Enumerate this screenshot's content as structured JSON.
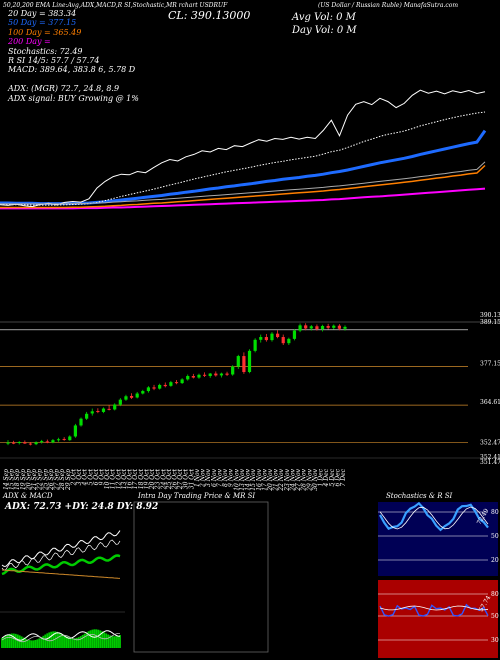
{
  "header": {
    "top_line": "50,20,200 EMA Line:Avg,ADX,MACD,R                    SI,Stochastic,MR                 rchart  USDRUF",
    "close_label": "CL: 390.13000",
    "right_title": "(US Dollar / Russian Ruble) ManafaSutra.com",
    "avg_vol": "Avg Vol: 0  M",
    "day_vol": "Day Vol: 0   M",
    "rows": [
      {
        "text": "20  Day = 383.34",
        "color": "#ffffff"
      },
      {
        "text": "50  Day = 377.15",
        "color": "#1e6bff"
      },
      {
        "text": "100  Day = 365.49",
        "color": "#ff7f00"
      },
      {
        "text": "200  Day = ",
        "color": "#ff00ff"
      },
      {
        "text": "Stochastics: 72.49",
        "color": "#ffffff"
      },
      {
        "text": "R                       SI 14/5: 57.7 / 57.74",
        "color": "#ffffff"
      },
      {
        "text": "MACD: 389.64,  383.8                6,  5.78  D",
        "color": "#ffffff"
      },
      {
        "text": "",
        "color": "#ffffff"
      },
      {
        "text": "ADX:                                        (MGR) 72.7,  24.8,   8.9",
        "color": "#ffffff"
      },
      {
        "text": "ADX  signal:                                       BUY Growing @ 1%",
        "color": "#ffffff"
      }
    ]
  },
  "price_axis": [
    "390.13",
    "389.15",
    "377.15",
    "364.61",
    "352.47",
    "352.41",
    "351.4738"
  ],
  "x_labels": [
    "14 Sep",
    "15 Sep",
    "18 Sep",
    "19 Sep",
    "20 Sep",
    "21 Sep",
    "22 Sep",
    "25 Sep",
    "26 Sep",
    "27 Sep",
    "28 Sep",
    "29 Sep",
    "2 Oct",
    "3 Oct",
    "4 Oct",
    "5 Oct",
    "6 Oct",
    "9 Oct",
    "10 Oct",
    "11 Oct",
    "12 Oct",
    "13 Oct",
    "16 Oct",
    "17 Oct",
    "18 Oct",
    "19 Oct",
    "20 Oct",
    "23 Oct",
    "24 Oct",
    "25 Oct",
    "26 Oct",
    "27 Oct",
    "30 Oct",
    "31 Oct",
    "1 Nov",
    "2 Nov",
    "3 Nov",
    "6 Nov",
    "7 Nov",
    "8 Nov",
    "9 Nov",
    "10 Nov",
    "13 Nov",
    "14 Nov",
    "15 Nov",
    "16 Nov",
    "17 Nov",
    "20 Nov",
    "21 Nov",
    "22 Nov",
    "23 Nov",
    "24 Nov",
    "27 Nov",
    "28 Nov",
    "29 Nov",
    "30 Nov",
    "1 Dec",
    "4 Dec",
    "5 Dec",
    "6 Dec",
    "7 Dec"
  ],
  "panels": {
    "adx_title": "ADX  & MACD",
    "adx_values": "ADX: 72.73  +DY: 24.8   DY: 8.92",
    "intraday_title": "Intra  Day Trading Price  & MR                     SI",
    "stoch_title": "Stochastics & R                SI",
    "stoch_levels": [
      "80",
      "50",
      "20"
    ],
    "rsi_levels": [
      "80",
      "50",
      "30"
    ],
    "stoch_value": "72.49",
    "rsi_value": "57.74"
  },
  "colors": {
    "up": "#00dd00",
    "down": "#ff3030",
    "ema20": "#ffffff",
    "ema50": "#1e6bff",
    "ema100": "#ff7f00",
    "ema200": "#ff00ff",
    "stoch_bg": "#000055",
    "rsi_bg": "#aa0000"
  },
  "chart_data": {
    "type": "line",
    "title": "USDRUF",
    "candles": [
      {
        "o": 352.1,
        "h": 353.2,
        "l": 351.6,
        "c": 352.4
      },
      {
        "o": 352.4,
        "h": 353.0,
        "l": 351.9,
        "c": 352.2
      },
      {
        "o": 352.3,
        "h": 352.9,
        "l": 351.8,
        "c": 352.6
      },
      {
        "o": 352.5,
        "h": 353.1,
        "l": 352.0,
        "c": 352.1
      },
      {
        "o": 352.1,
        "h": 352.6,
        "l": 351.5,
        "c": 351.8
      },
      {
        "o": 351.9,
        "h": 352.8,
        "l": 351.6,
        "c": 352.5
      },
      {
        "o": 352.6,
        "h": 353.3,
        "l": 352.1,
        "c": 352.9
      },
      {
        "o": 352.8,
        "h": 353.4,
        "l": 352.2,
        "c": 352.4
      },
      {
        "o": 352.5,
        "h": 353.6,
        "l": 352.2,
        "c": 353.2
      },
      {
        "o": 353.2,
        "h": 354.0,
        "l": 352.7,
        "c": 353.5
      },
      {
        "o": 353.6,
        "h": 354.2,
        "l": 353.0,
        "c": 353.3
      },
      {
        "o": 353.2,
        "h": 354.8,
        "l": 353.0,
        "c": 354.4
      },
      {
        "o": 354.4,
        "h": 358.5,
        "l": 354.0,
        "c": 358.0
      },
      {
        "o": 358.0,
        "h": 360.6,
        "l": 357.6,
        "c": 360.2
      },
      {
        "o": 360.2,
        "h": 362.4,
        "l": 359.8,
        "c": 361.8
      },
      {
        "o": 361.9,
        "h": 363.5,
        "l": 361.2,
        "c": 362.6
      },
      {
        "o": 362.7,
        "h": 363.6,
        "l": 362.0,
        "c": 362.4
      },
      {
        "o": 362.4,
        "h": 363.9,
        "l": 362.0,
        "c": 363.5
      },
      {
        "o": 363.4,
        "h": 364.5,
        "l": 362.9,
        "c": 363.1
      },
      {
        "o": 363.2,
        "h": 365.2,
        "l": 362.9,
        "c": 364.8
      },
      {
        "o": 364.8,
        "h": 366.9,
        "l": 364.3,
        "c": 366.4
      },
      {
        "o": 366.4,
        "h": 368.0,
        "l": 366.0,
        "c": 367.5
      },
      {
        "o": 367.6,
        "h": 368.5,
        "l": 366.6,
        "c": 367.0
      },
      {
        "o": 367.1,
        "h": 368.9,
        "l": 366.8,
        "c": 368.4
      },
      {
        "o": 368.4,
        "h": 369.6,
        "l": 368.1,
        "c": 369.2
      },
      {
        "o": 369.2,
        "h": 370.8,
        "l": 368.7,
        "c": 370.4
      },
      {
        "o": 370.4,
        "h": 371.2,
        "l": 369.5,
        "c": 370.0
      },
      {
        "o": 370.0,
        "h": 371.6,
        "l": 369.7,
        "c": 371.2
      },
      {
        "o": 371.2,
        "h": 372.0,
        "l": 370.4,
        "c": 370.8
      },
      {
        "o": 370.9,
        "h": 372.5,
        "l": 370.6,
        "c": 372.1
      },
      {
        "o": 372.1,
        "h": 372.8,
        "l": 371.4,
        "c": 371.8
      },
      {
        "o": 371.8,
        "h": 373.4,
        "l": 371.5,
        "c": 373.0
      },
      {
        "o": 373.0,
        "h": 374.6,
        "l": 372.6,
        "c": 374.1
      },
      {
        "o": 374.1,
        "h": 374.8,
        "l": 373.3,
        "c": 373.6
      },
      {
        "o": 373.6,
        "h": 374.9,
        "l": 373.2,
        "c": 374.5
      },
      {
        "o": 374.5,
        "h": 375.3,
        "l": 373.8,
        "c": 374.2
      },
      {
        "o": 374.1,
        "h": 375.1,
        "l": 373.5,
        "c": 374.9
      },
      {
        "o": 374.9,
        "h": 375.6,
        "l": 373.9,
        "c": 374.3
      },
      {
        "o": 374.3,
        "h": 375.2,
        "l": 373.6,
        "c": 374.9
      },
      {
        "o": 374.9,
        "h": 375.5,
        "l": 374.1,
        "c": 374.5
      },
      {
        "o": 374.6,
        "h": 377.6,
        "l": 374.2,
        "c": 377.2
      },
      {
        "o": 377.2,
        "h": 381.0,
        "l": 376.4,
        "c": 380.6
      },
      {
        "o": 380.6,
        "h": 381.8,
        "l": 374.8,
        "c": 375.4
      },
      {
        "o": 375.4,
        "h": 382.8,
        "l": 375.0,
        "c": 382.3
      },
      {
        "o": 382.3,
        "h": 386.4,
        "l": 381.8,
        "c": 385.9
      },
      {
        "o": 385.9,
        "h": 387.6,
        "l": 385.0,
        "c": 386.8
      },
      {
        "o": 386.8,
        "h": 387.8,
        "l": 385.3,
        "c": 385.8
      },
      {
        "o": 385.8,
        "h": 388.4,
        "l": 385.3,
        "c": 387.9
      },
      {
        "o": 387.9,
        "h": 389.0,
        "l": 386.4,
        "c": 386.8
      },
      {
        "o": 386.8,
        "h": 387.6,
        "l": 384.2,
        "c": 384.8
      },
      {
        "o": 384.8,
        "h": 386.6,
        "l": 384.2,
        "c": 386.2
      },
      {
        "o": 386.2,
        "h": 389.4,
        "l": 385.7,
        "c": 388.9
      },
      {
        "o": 388.9,
        "h": 391.2,
        "l": 388.4,
        "c": 390.6
      },
      {
        "o": 390.6,
        "h": 391.3,
        "l": 389.0,
        "c": 389.6
      },
      {
        "o": 389.6,
        "h": 390.7,
        "l": 388.9,
        "c": 390.3
      },
      {
        "o": 390.3,
        "h": 390.9,
        "l": 388.9,
        "c": 389.4
      },
      {
        "o": 389.4,
        "h": 390.8,
        "l": 388.6,
        "c": 390.4
      },
      {
        "o": 390.4,
        "h": 391.1,
        "l": 389.3,
        "c": 389.8
      },
      {
        "o": 389.8,
        "h": 390.9,
        "l": 389.2,
        "c": 390.5
      },
      {
        "o": 390.5,
        "h": 391.0,
        "l": 389.0,
        "c": 389.5
      },
      {
        "o": 389.5,
        "h": 390.6,
        "l": 388.9,
        "c": 390.1
      }
    ],
    "ylim": [
      350,
      393
    ],
    "ema_lines": {
      "ema20": [
        352.6,
        352.5,
        352.4,
        352.4,
        352.3,
        352.3,
        352.3,
        352.3,
        352.4,
        352.5,
        352.6,
        352.8,
        353.2,
        353.8,
        354.5,
        355.2,
        355.8,
        356.4,
        357.0,
        357.6,
        358.3,
        359.0,
        359.6,
        360.3,
        361.0,
        361.6,
        362.2,
        362.8,
        363.4,
        363.9,
        364.4,
        364.9,
        365.5,
        366.0,
        366.5,
        366.9,
        367.4,
        367.8,
        368.2,
        368.6,
        369.3,
        370.1,
        370.6,
        371.5,
        372.5,
        373.5,
        374.3,
        375.2,
        375.9,
        376.4,
        377.0,
        377.8,
        378.7,
        379.4,
        380.1,
        380.8,
        381.4,
        382.0,
        382.5,
        383.0,
        383.34
      ],
      "ema50": [
        353.0,
        353.0,
        352.9,
        352.9,
        352.9,
        352.8,
        352.8,
        352.8,
        352.8,
        352.8,
        352.9,
        353.0,
        353.2,
        353.4,
        353.7,
        354.0,
        354.3,
        354.6,
        354.9,
        355.2,
        355.5,
        355.9,
        356.2,
        356.6,
        356.9,
        357.3,
        357.7,
        358.0,
        358.4,
        358.7,
        359.1,
        359.4,
        359.8,
        360.2,
        360.5,
        360.9,
        361.2,
        361.5,
        361.9,
        362.2,
        362.6,
        363.1,
        363.5,
        364.0,
        364.6,
        365.2,
        365.8,
        366.4,
        366.9,
        367.4,
        367.9,
        368.5,
        369.2,
        369.8,
        370.4,
        371.0,
        371.6,
        372.2,
        372.8,
        373.3,
        377.15
      ],
      "ema100": [
        351.5,
        351.5,
        351.5,
        351.5,
        351.5,
        351.5,
        351.5,
        351.5,
        351.5,
        351.6,
        351.6,
        351.7,
        351.8,
        351.9,
        352.1,
        352.2,
        352.4,
        352.5,
        352.7,
        352.9,
        353.0,
        353.2,
        353.4,
        353.6,
        353.8,
        354.0,
        354.2,
        354.4,
        354.6,
        354.8,
        355.0,
        355.2,
        355.4,
        355.6,
        355.8,
        356.0,
        356.2,
        356.4,
        356.6,
        356.8,
        357.0,
        357.3,
        357.5,
        357.8,
        358.1,
        358.4,
        358.7,
        359.0,
        359.3,
        359.6,
        359.9,
        360.2,
        360.6,
        360.9,
        361.3,
        361.6,
        362.0,
        362.3,
        362.7,
        363.0,
        365.49
      ],
      "ema200": [
        351.2,
        351.2,
        351.2,
        351.2,
        351.2,
        351.2,
        351.2,
        351.2,
        351.2,
        351.2,
        351.3,
        351.3,
        351.3,
        351.4,
        351.5,
        351.5,
        351.6,
        351.7,
        351.8,
        351.9,
        352.0,
        352.1,
        352.2,
        352.3,
        352.4,
        352.5,
        352.6,
        352.7,
        352.8,
        352.9,
        353.0,
        353.1,
        353.2,
        353.3,
        353.4,
        353.5,
        353.6,
        353.7,
        353.8,
        353.9,
        354.0,
        354.2,
        354.3,
        354.5,
        354.7,
        354.9,
        355.1,
        355.2,
        355.4,
        355.6,
        355.8,
        356.0,
        356.2,
        356.4,
        356.6,
        356.8,
        357.0,
        357.2,
        357.4,
        357.6,
        357.8
      ]
    }
  }
}
